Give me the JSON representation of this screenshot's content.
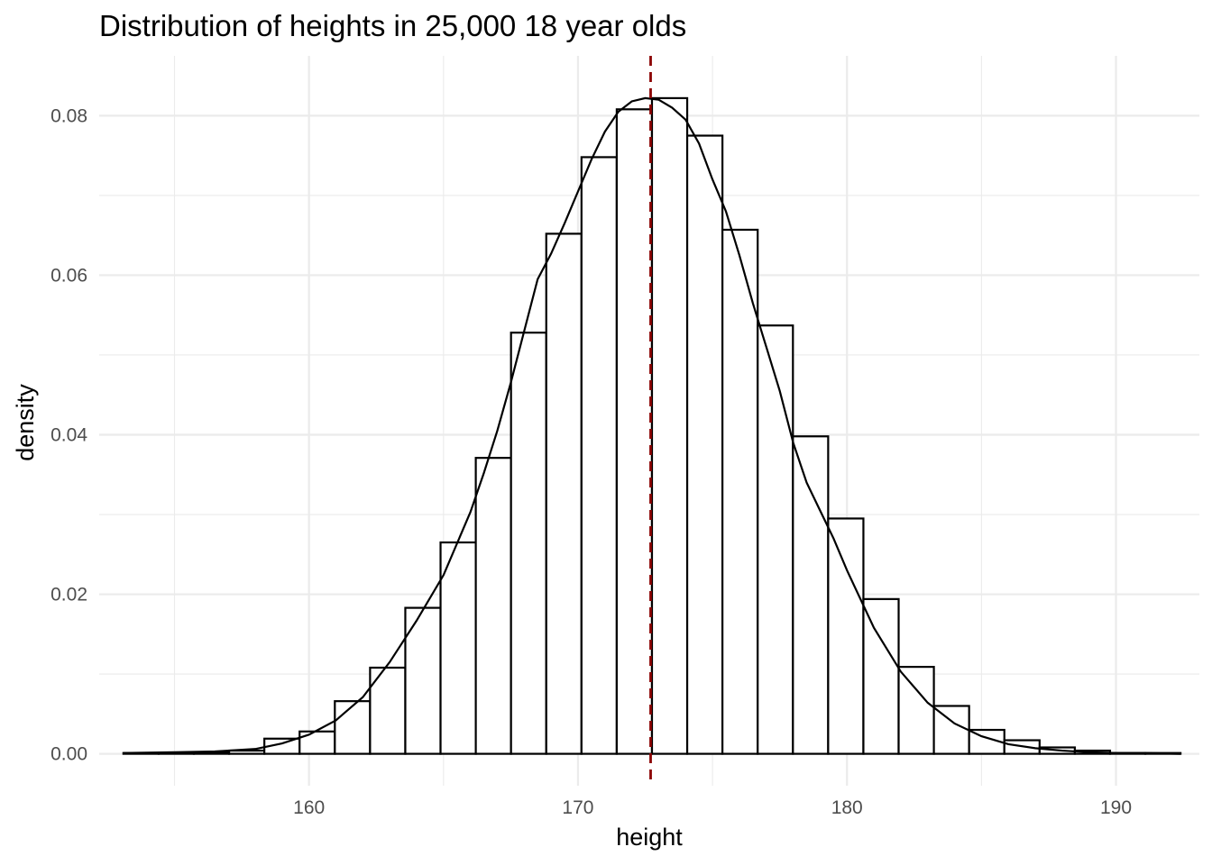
{
  "chart_data": {
    "type": "bar",
    "subtype": "histogram",
    "title": "Distribution of heights in 25,000 18 year olds",
    "xlabel": "height",
    "ylabel": "density",
    "xlim": [
      152.2,
      193.1
    ],
    "ylim": [
      -0.004,
      0.0875
    ],
    "x_ticks": [
      160,
      170,
      180,
      190
    ],
    "x_tick_labels": [
      "160",
      "170",
      "180",
      "190"
    ],
    "y_ticks": [
      0.0,
      0.02,
      0.04,
      0.06,
      0.08
    ],
    "y_tick_labels": [
      "0.00",
      "0.02",
      "0.04",
      "0.06",
      "0.08"
    ],
    "grid": true,
    "bin_edges": [
      153.1,
      154.41,
      155.72,
      157.03,
      158.34,
      159.65,
      160.96,
      162.27,
      163.58,
      164.89,
      166.2,
      167.51,
      168.82,
      170.13,
      171.44,
      172.75,
      174.06,
      175.37,
      176.68,
      177.99,
      179.3,
      180.61,
      181.92,
      183.23,
      184.54,
      185.85,
      187.16,
      188.47,
      189.78,
      191.09,
      192.4
    ],
    "bin_density": [
      0.0001,
      0.0001,
      0.0002,
      0.0004,
      0.0019,
      0.0028,
      0.0066,
      0.0108,
      0.0183,
      0.0265,
      0.0371,
      0.0528,
      0.0652,
      0.0748,
      0.0808,
      0.0822,
      0.0775,
      0.0657,
      0.0537,
      0.0398,
      0.0295,
      0.0194,
      0.0109,
      0.006,
      0.003,
      0.0017,
      0.0008,
      0.0004,
      0.0001,
      0.0001
    ],
    "density_curve": {
      "x": [
        153.1,
        155.0,
        156.5,
        158.0,
        159.0,
        160.0,
        161.0,
        162.0,
        163.0,
        164.0,
        165.0,
        166.0,
        166.5,
        167.0,
        167.5,
        168.0,
        168.5,
        169.0,
        169.5,
        170.0,
        170.5,
        171.0,
        171.5,
        172.0,
        172.5,
        173.0,
        173.5,
        174.0,
        174.5,
        175.0,
        175.5,
        176.0,
        176.5,
        177.0,
        177.5,
        178.0,
        178.5,
        179.0,
        179.5,
        180.0,
        181.0,
        182.0,
        183.0,
        184.0,
        185.0,
        186.0,
        187.0,
        188.0,
        189.0,
        190.0,
        191.0,
        192.4
      ],
      "y": [
        0.0001,
        0.0002,
        0.0003,
        0.0006,
        0.0013,
        0.0024,
        0.0042,
        0.0071,
        0.0115,
        0.0167,
        0.0224,
        0.0303,
        0.0352,
        0.0405,
        0.0465,
        0.053,
        0.0595,
        0.0627,
        0.0665,
        0.0705,
        0.0745,
        0.078,
        0.0805,
        0.0818,
        0.0822,
        0.082,
        0.081,
        0.0795,
        0.0765,
        0.072,
        0.068,
        0.0625,
        0.0565,
        0.051,
        0.0455,
        0.039,
        0.034,
        0.0305,
        0.027,
        0.023,
        0.0158,
        0.0103,
        0.0064,
        0.0038,
        0.0022,
        0.0012,
        0.0007,
        0.0004,
        0.0002,
        0.0001,
        0.0001,
        0.0
      ]
    },
    "mean_line": {
      "x": 172.7,
      "color": "#8b0000",
      "style": "dashed"
    }
  }
}
